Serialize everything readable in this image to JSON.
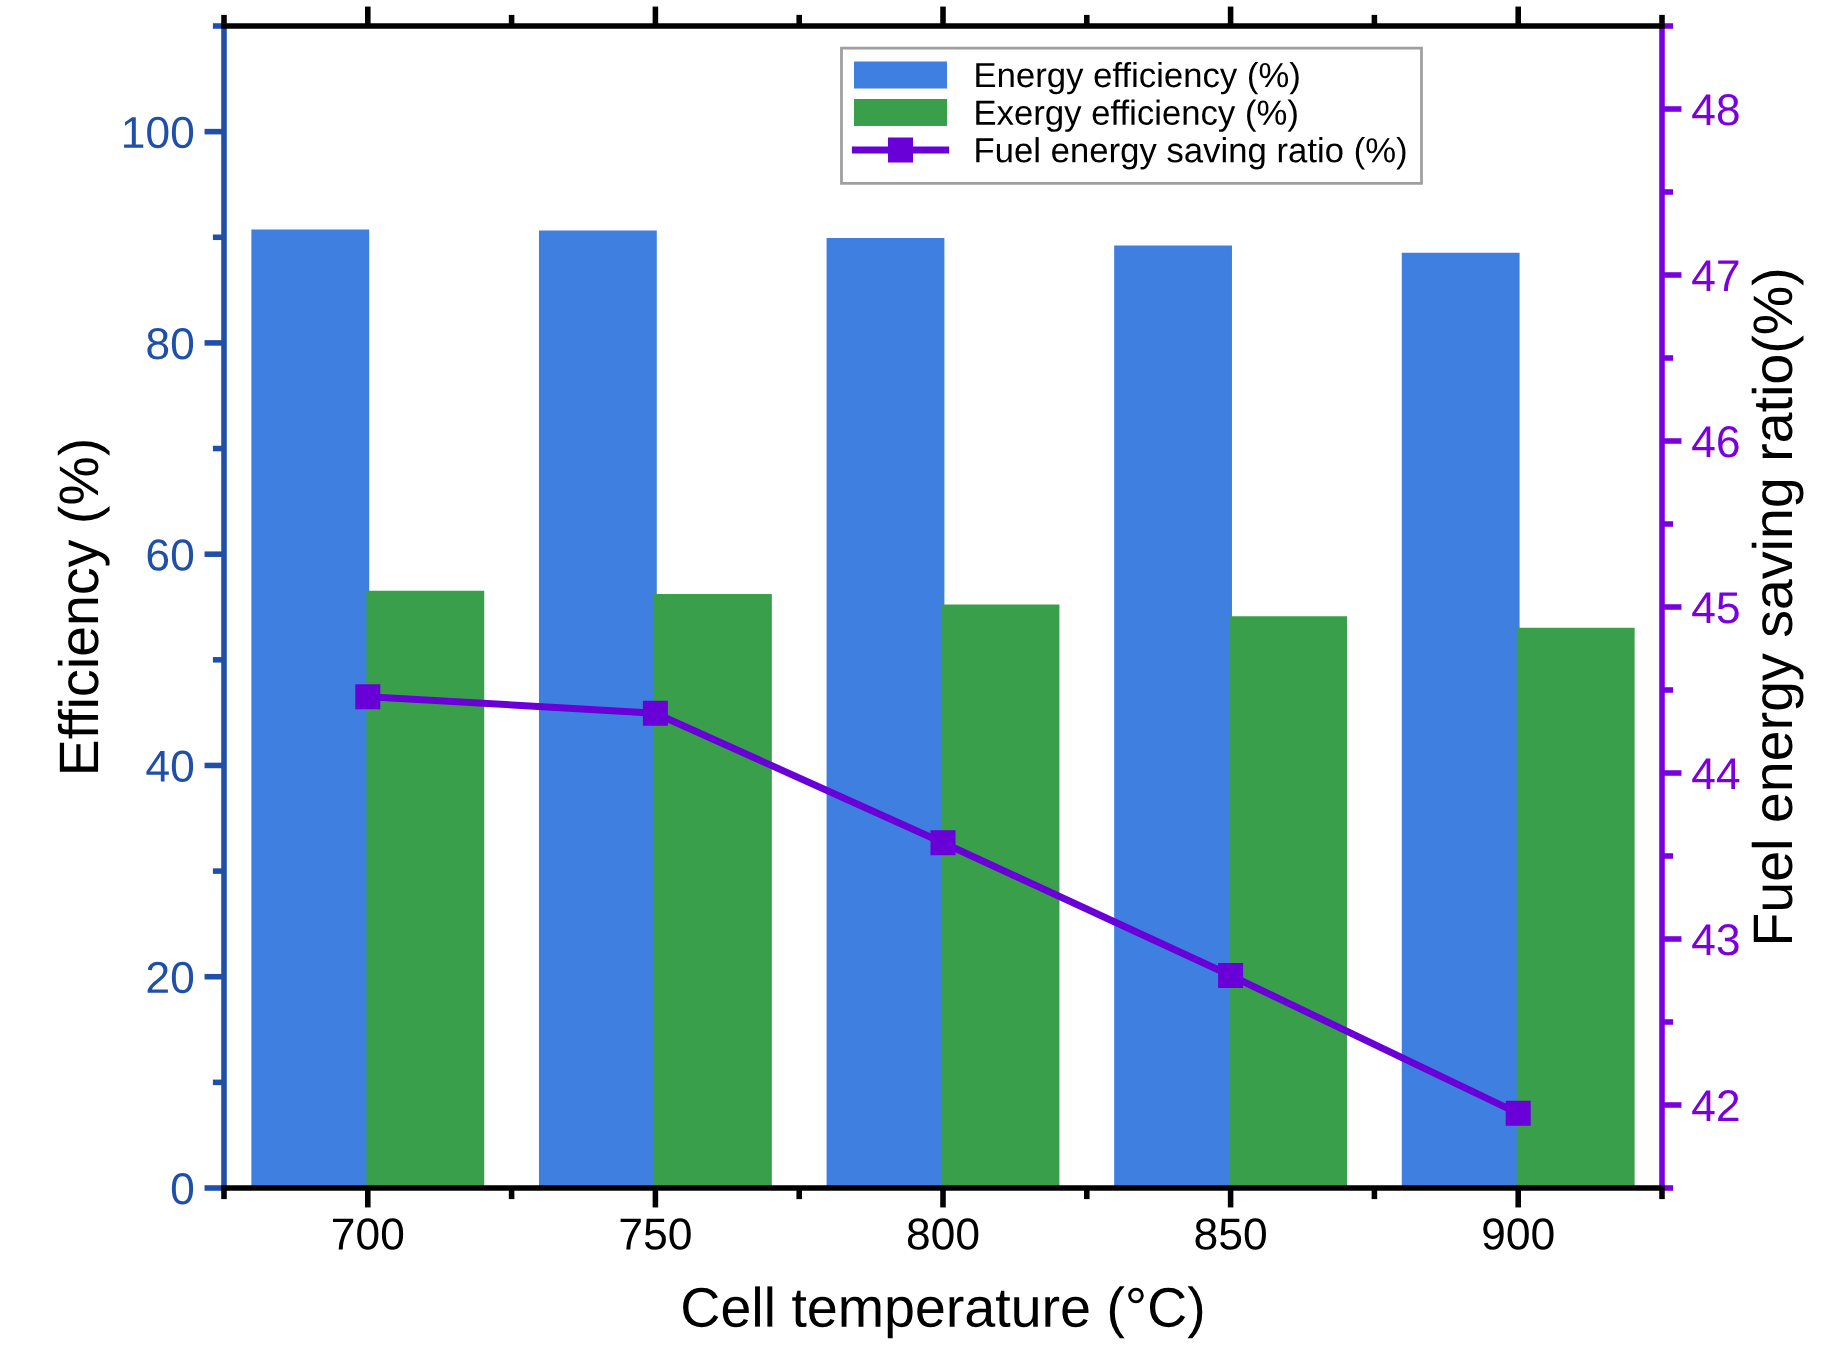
{
  "chart_data": {
    "type": "bar",
    "xlabel": "Cell temperature (°C)",
    "ylabel": "Efficiency (%)",
    "y2label": "Fuel energy saving ratio(%)",
    "x": [
      700,
      750,
      800,
      850,
      900
    ],
    "series": [
      {
        "name": "Energy efficiency (%)",
        "color": "#3f7fe0",
        "values": [
          90.6,
          90.5,
          89.8,
          89.1,
          88.4
        ]
      },
      {
        "name": "Exergy efficiency (%)",
        "color": "#3a9f4a",
        "values": [
          56.4,
          56.1,
          55.1,
          54.0,
          52.9
        ]
      },
      {
        "name": "Fuel energy saving ratio (%)",
        "type": "line",
        "axis": "y2",
        "color": "#6a00d8",
        "marker": "square",
        "values": [
          44.46,
          44.36,
          43.58,
          42.78,
          41.95
        ]
      }
    ],
    "xlim": [
      675,
      925
    ],
    "xticks": [
      700,
      750,
      800,
      850,
      900
    ],
    "ylim": [
      0,
      110
    ],
    "yticks": [
      0,
      20,
      40,
      60,
      80,
      100
    ],
    "y2lim": [
      41.5,
      48.5
    ],
    "y2ticks": [
      42,
      43,
      44,
      45,
      46,
      47,
      48
    ],
    "grid": false,
    "legend": "top right"
  }
}
